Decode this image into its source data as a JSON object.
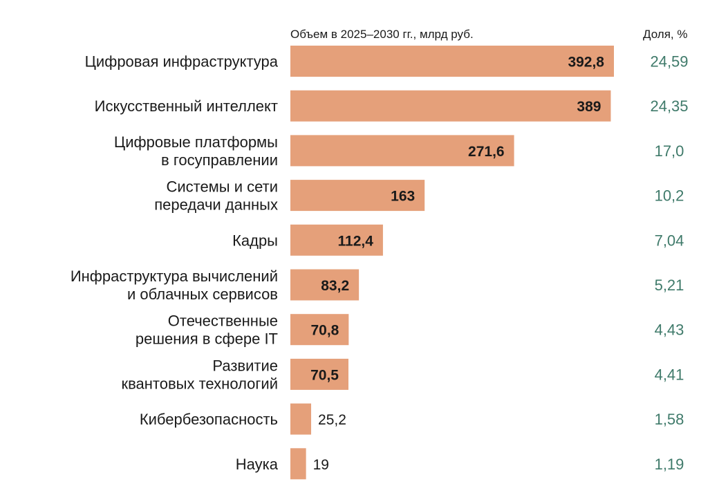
{
  "chart_data": {
    "type": "bar",
    "orientation": "horizontal",
    "value_header": "Объем в 2025–2030 гг., млрд руб.",
    "share_header": "Доля, %",
    "categories": [
      [
        "Цифровая инфраструктура"
      ],
      [
        "Искусственный интеллект"
      ],
      [
        "Цифровые платформы",
        "в госуправлении"
      ],
      [
        "Системы и сети",
        "передачи данных"
      ],
      [
        "Кадры"
      ],
      [
        "Инфраструктура вычислений",
        "и облачных сервисов"
      ],
      [
        "Отечественные",
        "решения в сфере IT"
      ],
      [
        "Развитие",
        "квантовых технологий"
      ],
      [
        "Кибербезопасность"
      ],
      [
        "Наука"
      ]
    ],
    "values": [
      392.8,
      389,
      271.6,
      163,
      112.4,
      83.2,
      70.8,
      70.5,
      25.2,
      19
    ],
    "value_labels": [
      "392,8",
      "389",
      "271,6",
      "163",
      "112,4",
      "83,2",
      "70,8",
      "70,5",
      "25,2",
      "19"
    ],
    "shares": [
      "24,59",
      "24,35",
      "17,0",
      "10,2",
      "7,04",
      "5,21",
      "4,43",
      "4,41",
      "1,58",
      "1,19"
    ],
    "xlim": [
      0,
      392.8
    ],
    "colors": {
      "bar": "#e5a07a",
      "share_text": "#3f7a6a",
      "outside_value_text": "#c9866a"
    }
  }
}
